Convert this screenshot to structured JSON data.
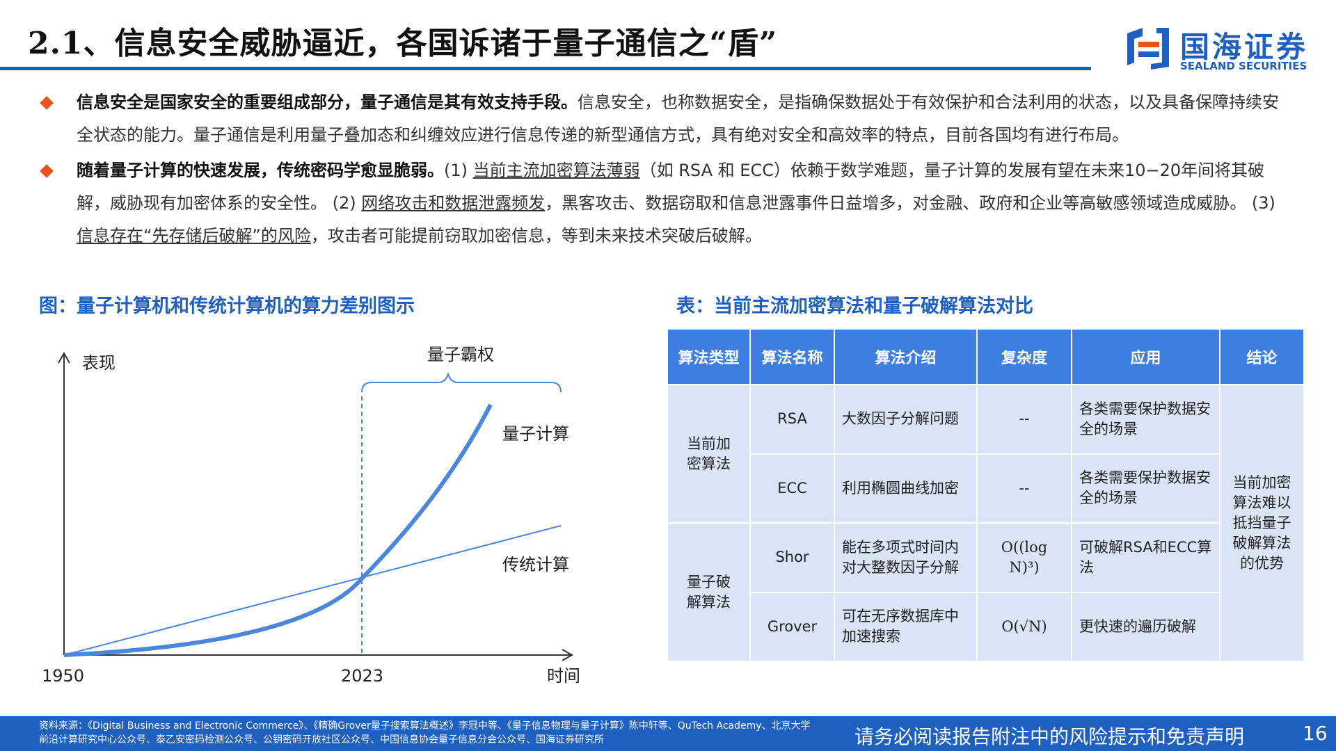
{
  "header": {
    "title": "2.1、信息安全威胁逼近，各国诉诸于量子通信之“盾”",
    "logo_cn": "国海证券",
    "logo_en": "SEALAND SECURITIES"
  },
  "bullets": [
    {
      "bold": "信息安全是国家安全的重要组成部分，量子通信是其有效支持手段。",
      "rest": "信息安全，也称数据安全，是指确保数据处于有效保护和合法利用的状态，以及具备保障持续安全状态的能力。量子通信是利用量子叠加态和纠缠效应进行信息传递的新型通信方式，具有绝对安全和高效率的特点，目前各国均有进行布局。"
    },
    {
      "bold": "随着量子计算的快速发展，传统密码学愈显脆弱。",
      "p1": "(1) ",
      "u1": "当前主流加密算法薄弱",
      "p2": "（如 RSA 和 ECC）依赖于数学难题，量子计算的发展有望在未来10−20年间将其破解，威胁现有加密体系的安全性。 (2) ",
      "u2": "网络攻击和数据泄露频发",
      "p3": "，黑客攻击、数据窃取和信息泄露事件日益增多，对金融、政府和企业等高敏感领域造成威胁。 (3) ",
      "u3": "信息存在“先存储后破解”的风险",
      "p4": "，攻击者可能提前窃取加密信息，等到未来技术突破后破解。"
    }
  ],
  "figure_caption": "图：量子计算机和传统计算机的算力差别图示",
  "table_caption": "表：当前主流加密算法和量子破解算法对比",
  "chart_data": {
    "type": "line",
    "ylabel": "表现",
    "xlabel": "时间",
    "x_ticks": [
      "1950",
      "2023"
    ],
    "annotation": "量子霸权",
    "series": [
      {
        "name": "量子计算",
        "shape": "exponential"
      },
      {
        "name": "传统计算",
        "shape": "linear"
      }
    ],
    "crossover_x": "2023",
    "colors": {
      "quantum": "#4a86e0",
      "classical": "#4a86e0",
      "axis": "#333333"
    }
  },
  "table": {
    "headers": [
      "算法类型",
      "算法名称",
      "算法介绍",
      "复杂度",
      "应用",
      "结论"
    ],
    "groups": [
      {
        "type": "当前加密算法"
      },
      {
        "type": "量子破解算法"
      }
    ],
    "rows": [
      {
        "name": "RSA",
        "intro": "大数因子分解问题",
        "complexity": "--",
        "application": "各类需要保护数据安全的场景"
      },
      {
        "name": "ECC",
        "intro": "利用椭圆曲线加密",
        "complexity": "--",
        "application": "各类需要保护数据安全的场景"
      },
      {
        "name": "Shor",
        "intro": "能在多项式时间内对大整数因子分解",
        "complexity": "O((log N)³)",
        "application": "可破解RSA和ECC算法"
      },
      {
        "name": "Grover",
        "intro": "可在无序数据库中加速搜索",
        "complexity": "O(√N)",
        "application": "更快速的遍历破解"
      }
    ],
    "conclusion": "当前加密算法难以抵挡量子破解算法的优势"
  },
  "footer": {
    "source": "资料来源：《Digital Business and Electronic Commerce》、《精确Grover量子搜索算法概述》李冠中等、《量子信息物理与量子计算》陈中轩等、QuTech Academy、北京大学前沿计算研究中心公众号、泰乙安密码检测公众号、公钥密码开放社区公众号、中国信息协会量子信息分会公众号、国海证券研究所",
    "disclaimer": "请务必阅读报告附注中的风险提示和免责声明",
    "page": "16"
  },
  "colors": {
    "brand": "#1f5fc0",
    "accent": "#e8541e",
    "table_header": "#3d7ee0",
    "table_cell": "#d9e4f6"
  }
}
